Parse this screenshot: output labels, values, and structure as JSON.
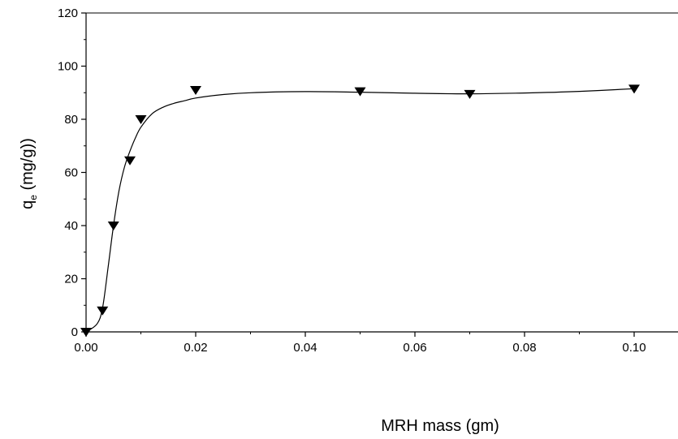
{
  "chart_data": {
    "type": "scatter",
    "xlabel": "MRH mass (gm)",
    "ylabel_main": "q",
    "ylabel_sub": "e",
    "ylabel_rest": " (mg/g))",
    "xlim": [
      0.0,
      0.108
    ],
    "ylim": [
      0,
      120
    ],
    "x_ticks": [
      0.0,
      0.02,
      0.04,
      0.06,
      0.08,
      0.1
    ],
    "x_tick_labels": [
      "0.00",
      "0.02",
      "0.04",
      "0.06",
      "0.08",
      "0.10"
    ],
    "y_ticks": [
      0,
      20,
      40,
      60,
      80,
      100,
      120
    ],
    "y_tick_labels": [
      "0",
      "20",
      "40",
      "60",
      "80",
      "100",
      "120"
    ],
    "grid": false,
    "marker": "down-triangle",
    "colors": {
      "marker": "#000000",
      "line": "#000000"
    },
    "series": [
      {
        "x": [
          0.0,
          0.003,
          0.005,
          0.008,
          0.01,
          0.02,
          0.05,
          0.07,
          0.1
        ],
        "y": [
          0,
          8,
          40,
          64.5,
          80,
          91,
          90.5,
          89.5,
          91.5
        ]
      }
    ],
    "fit_curve": {
      "x": [
        0.0,
        0.002,
        0.003,
        0.004,
        0.005,
        0.006,
        0.007,
        0.008,
        0.009,
        0.01,
        0.012,
        0.014,
        0.016,
        0.018,
        0.02,
        0.025,
        0.03,
        0.04,
        0.05,
        0.06,
        0.07,
        0.08,
        0.09,
        0.1
      ],
      "y": [
        0,
        3,
        9,
        24,
        40,
        53,
        62,
        68,
        73,
        77,
        82,
        84.5,
        86,
        87,
        88,
        89.3,
        90,
        90.4,
        90.2,
        89.8,
        89.6,
        89.9,
        90.5,
        91.5
      ]
    }
  }
}
